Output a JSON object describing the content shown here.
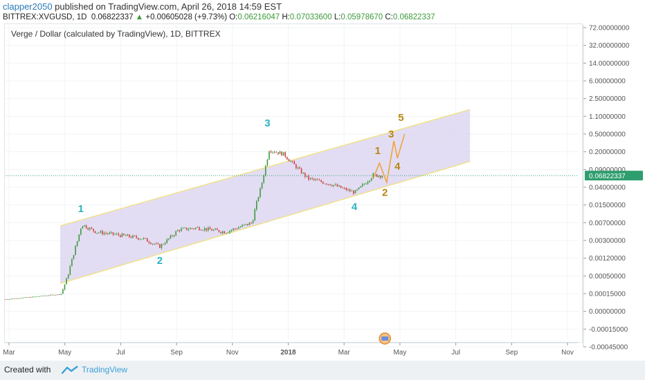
{
  "header": {
    "user": "clapper2050",
    "published_text": " published on TradingView.com, April 26, 2018 14:59 EST",
    "symbol": "BITTREX:XVGUSD, 1D",
    "last": "0.06822337",
    "change_icon": "triangle-up-icon",
    "change": "+0.00605028 (+9.73%)",
    "open_label": "O:",
    "open": "0.06216047",
    "high_label": "H:",
    "high": "0.07033600",
    "low_label": "L:",
    "low": "0.05978670",
    "close_label": "C:",
    "close": "0.06822337"
  },
  "footer": {
    "created_with": "Created with",
    "brand": "TradingView",
    "brand_icon": "tradingview-logo-icon"
  },
  "colors": {
    "channel_fill": "#d9d2f0",
    "channel_line": "#f0e08a",
    "wave_primary": "#2bb3c0",
    "wave_projection": "#b8860b",
    "projection_line": "#f0a030",
    "up_candle": "#3a9a3a",
    "down_candle": "#d24040",
    "last_price_bg": "#2e9e6e",
    "green_text": "#3a9a3a"
  },
  "chart_data": {
    "type": "candlestick",
    "title": "Verge / Dollar (calculated by TradingView), 1D, BITTREX",
    "x_ticks": [
      "Mar",
      "May",
      "Jul",
      "Sep",
      "Nov",
      "2018",
      "Mar",
      "May",
      "Jul",
      "Sep",
      "Nov"
    ],
    "y_ticks": [
      "72.00000000",
      "32.00000000",
      "14.00000000",
      "6.00000000",
      "2.50000000",
      "1.10000000",
      "0.50000000",
      "0.20000000",
      "0.09000000",
      "0.04000000",
      "0.01500000",
      "0.00700000",
      "0.00300000",
      "0.00120000",
      "0.00050000",
      "0.00015000",
      "0.00000000",
      "-0.00015000",
      "-0.00045000"
    ],
    "last_price_label": "0.06822337",
    "x_range": [
      "2017-03-01",
      "2018-11-30"
    ],
    "price_path": [
      [
        "2017-03-01",
        3e-05
      ],
      [
        "2017-04-01",
        6e-05
      ],
      [
        "2017-04-15",
        9e-05
      ],
      [
        "2017-05-01",
        0.00012
      ],
      [
        "2017-05-08",
        0.0004
      ],
      [
        "2017-05-15",
        0.0013
      ],
      [
        "2017-05-25",
        0.0065
      ],
      [
        "2017-06-10",
        0.0045
      ],
      [
        "2017-07-01",
        0.004
      ],
      [
        "2017-08-01",
        0.0033
      ],
      [
        "2017-08-20",
        0.0022
      ],
      [
        "2017-09-10",
        0.005
      ],
      [
        "2017-10-01",
        0.0055
      ],
      [
        "2017-11-01",
        0.0045
      ],
      [
        "2017-12-01",
        0.007
      ],
      [
        "2017-12-12",
        0.05
      ],
      [
        "2017-12-20",
        0.22
      ],
      [
        "2018-01-05",
        0.18
      ],
      [
        "2018-02-01",
        0.06
      ],
      [
        "2018-03-01",
        0.045
      ],
      [
        "2018-03-25",
        0.03
      ],
      [
        "2018-04-15",
        0.07
      ],
      [
        "2018-04-26",
        0.068
      ]
    ],
    "channel": {
      "upper": [
        [
          "2017-05-01",
          0.006
        ],
        [
          "2018-08-01",
          1.5
        ]
      ],
      "lower": [
        [
          "2017-05-01",
          0.0003
        ],
        [
          "2018-08-01",
          0.13
        ]
      ]
    },
    "wave_labels": [
      {
        "label": "1",
        "date": "2017-05-24",
        "price": 0.011,
        "set": "primary"
      },
      {
        "label": "2",
        "date": "2017-08-20",
        "price": 0.0009,
        "set": "primary"
      },
      {
        "label": "3",
        "date": "2017-12-18",
        "price": 0.7,
        "set": "primary"
      },
      {
        "label": "4",
        "date": "2018-03-25",
        "price": 0.012,
        "set": "primary"
      },
      {
        "label": "1",
        "date": "2018-04-20",
        "price": 0.18,
        "set": "projection"
      },
      {
        "label": "2",
        "date": "2018-04-28",
        "price": 0.025,
        "set": "projection"
      },
      {
        "label": "3",
        "date": "2018-05-05",
        "price": 0.42,
        "set": "projection"
      },
      {
        "label": "4",
        "date": "2018-05-12",
        "price": 0.09,
        "set": "projection"
      },
      {
        "label": "5",
        "date": "2018-05-16",
        "price": 0.9,
        "set": "projection"
      }
    ],
    "projection_path": [
      [
        "2018-04-15",
        0.06
      ],
      [
        "2018-04-22",
        0.12
      ],
      [
        "2018-04-30",
        0.05
      ],
      [
        "2018-05-08",
        0.35
      ],
      [
        "2018-05-12",
        0.15
      ],
      [
        "2018-05-20",
        0.5
      ]
    ],
    "grid": true
  }
}
